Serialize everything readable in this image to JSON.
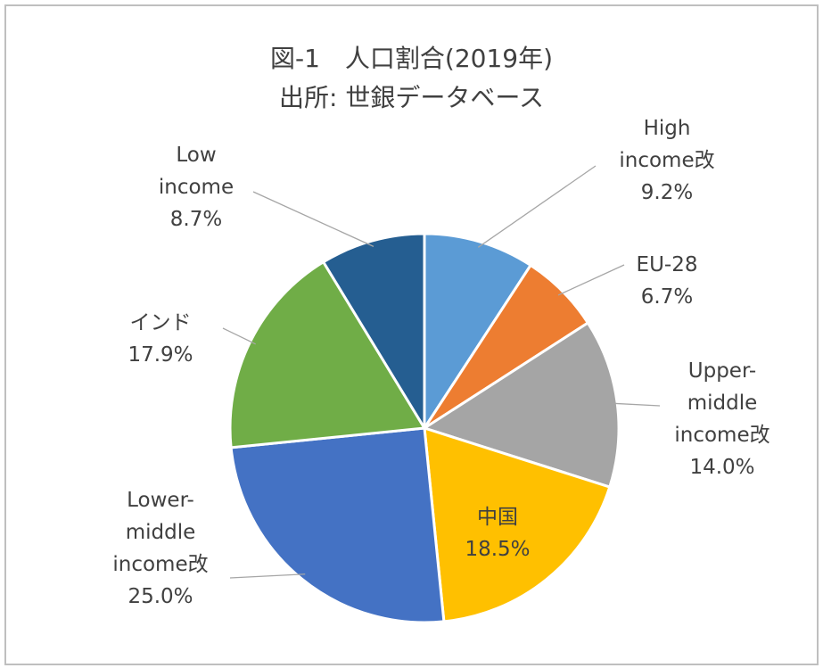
{
  "chart_data": {
    "type": "pie",
    "title": "図-1　人口割合(2019年)",
    "subtitle": "出所: 世銀データベース",
    "categories": [
      "High income改",
      "EU-28",
      "Upper-middle income改",
      "中国",
      "Lower-middle income改",
      "インド",
      "Low income"
    ],
    "values": [
      9.2,
      6.7,
      14.0,
      18.5,
      25.0,
      17.9,
      8.7
    ],
    "value_labels": [
      "9.2%",
      "6.7%",
      "14.0%",
      "18.5%",
      "25.0%",
      "17.9%",
      "8.7%"
    ],
    "colors": [
      "#5b9bd5",
      "#ed7d31",
      "#a5a5a5",
      "#ffc000",
      "#4472c4",
      "#70ad47",
      "#255e91"
    ]
  }
}
